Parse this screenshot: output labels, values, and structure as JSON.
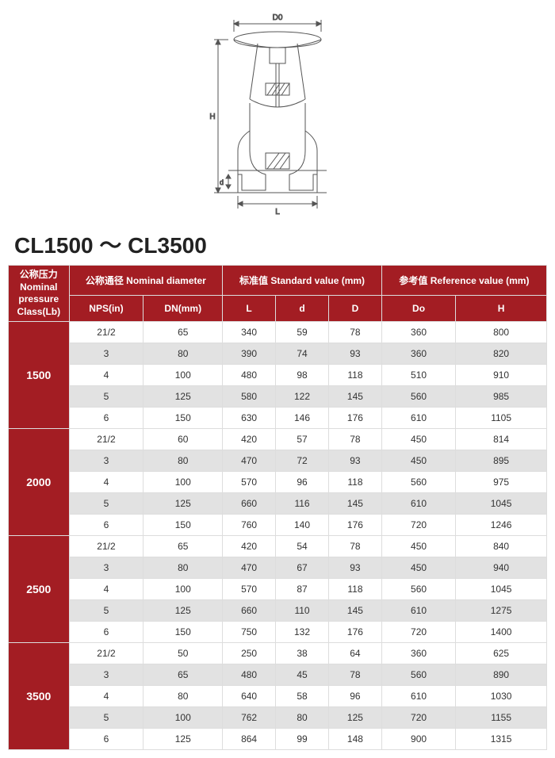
{
  "title": "CL1500 ～ CL3500",
  "diagram": {
    "labels": {
      "D0": "D0",
      "H": "H",
      "d": "d",
      "L": "L"
    },
    "stroke": "#555555"
  },
  "table": {
    "header_bg": "#a31d23",
    "header_fg": "#ffffff",
    "alt_row_bg": "#e2e2e2",
    "border_color": "#dddddd",
    "pressure_label_lines": [
      "公称压力",
      "Nominal",
      "pressure",
      "Class(Lb)"
    ],
    "group_headers": {
      "nominal_diameter": "公称通径 Nominal diameter",
      "standard_value": "标准值 Standard value (mm)",
      "reference_value": "参考值 Reference value (mm)"
    },
    "columns": [
      "NPS(in)",
      "DN(mm)",
      "L",
      "d",
      "D",
      "Do",
      "H"
    ],
    "groups": [
      {
        "class": "1500",
        "rows": [
          [
            "21/2",
            "65",
            "340",
            "59",
            "78",
            "360",
            "800"
          ],
          [
            "3",
            "80",
            "390",
            "74",
            "93",
            "360",
            "820"
          ],
          [
            "4",
            "100",
            "480",
            "98",
            "118",
            "510",
            "910"
          ],
          [
            "5",
            "125",
            "580",
            "122",
            "145",
            "560",
            "985"
          ],
          [
            "6",
            "150",
            "630",
            "146",
            "176",
            "610",
            "1105"
          ]
        ]
      },
      {
        "class": "2000",
        "rows": [
          [
            "21/2",
            "60",
            "420",
            "57",
            "78",
            "450",
            "814"
          ],
          [
            "3",
            "80",
            "470",
            "72",
            "93",
            "450",
            "895"
          ],
          [
            "4",
            "100",
            "570",
            "96",
            "118",
            "560",
            "975"
          ],
          [
            "5",
            "125",
            "660",
            "116",
            "145",
            "610",
            "1045"
          ],
          [
            "6",
            "150",
            "760",
            "140",
            "176",
            "720",
            "1246"
          ]
        ]
      },
      {
        "class": "2500",
        "rows": [
          [
            "21/2",
            "65",
            "420",
            "54",
            "78",
            "450",
            "840"
          ],
          [
            "3",
            "80",
            "470",
            "67",
            "93",
            "450",
            "940"
          ],
          [
            "4",
            "100",
            "570",
            "87",
            "118",
            "560",
            "1045"
          ],
          [
            "5",
            "125",
            "660",
            "110",
            "145",
            "610",
            "1275"
          ],
          [
            "6",
            "150",
            "750",
            "132",
            "176",
            "720",
            "1400"
          ]
        ]
      },
      {
        "class": "3500",
        "rows": [
          [
            "21/2",
            "50",
            "250",
            "38",
            "64",
            "360",
            "625"
          ],
          [
            "3",
            "65",
            "480",
            "45",
            "78",
            "560",
            "890"
          ],
          [
            "4",
            "80",
            "640",
            "58",
            "96",
            "610",
            "1030"
          ],
          [
            "5",
            "100",
            "762",
            "80",
            "125",
            "720",
            "1155"
          ],
          [
            "6",
            "125",
            "864",
            "99",
            "148",
            "900",
            "1315"
          ]
        ]
      }
    ]
  }
}
